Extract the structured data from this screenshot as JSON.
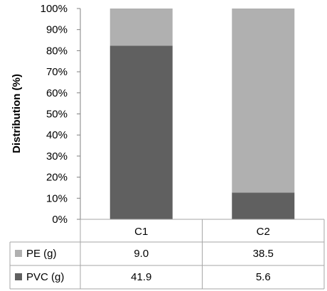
{
  "chart_data": {
    "type": "bar",
    "stacked": true,
    "percent_stacked": true,
    "categories": [
      "C1",
      "C2"
    ],
    "series": [
      {
        "name": "PVC (g)",
        "values": [
          41.9,
          5.6
        ],
        "color": "#606060"
      },
      {
        "name": "PE (g)",
        "values": [
          9.0,
          38.5
        ],
        "color": "#b0b0b0"
      }
    ],
    "title": "",
    "xlabel": "",
    "ylabel": "Distribution (%)",
    "ylim": [
      0,
      100
    ],
    "y_ticks": [
      "0%",
      "10%",
      "20%",
      "30%",
      "40%",
      "50%",
      "60%",
      "70%",
      "80%",
      "90%",
      "100%"
    ],
    "grid": false,
    "legend": "data-table"
  },
  "data_table": {
    "rows": [
      {
        "label": "PE (g)",
        "values": [
          "9.0",
          "38.5"
        ],
        "color": "#b0b0b0"
      },
      {
        "label": "PVC (g)",
        "values": [
          "41.9",
          "5.6"
        ],
        "color": "#606060"
      }
    ]
  },
  "colors": {
    "border": "#a6a6a6",
    "axis": "#808080",
    "text": "#000000",
    "background": "#ffffff"
  }
}
